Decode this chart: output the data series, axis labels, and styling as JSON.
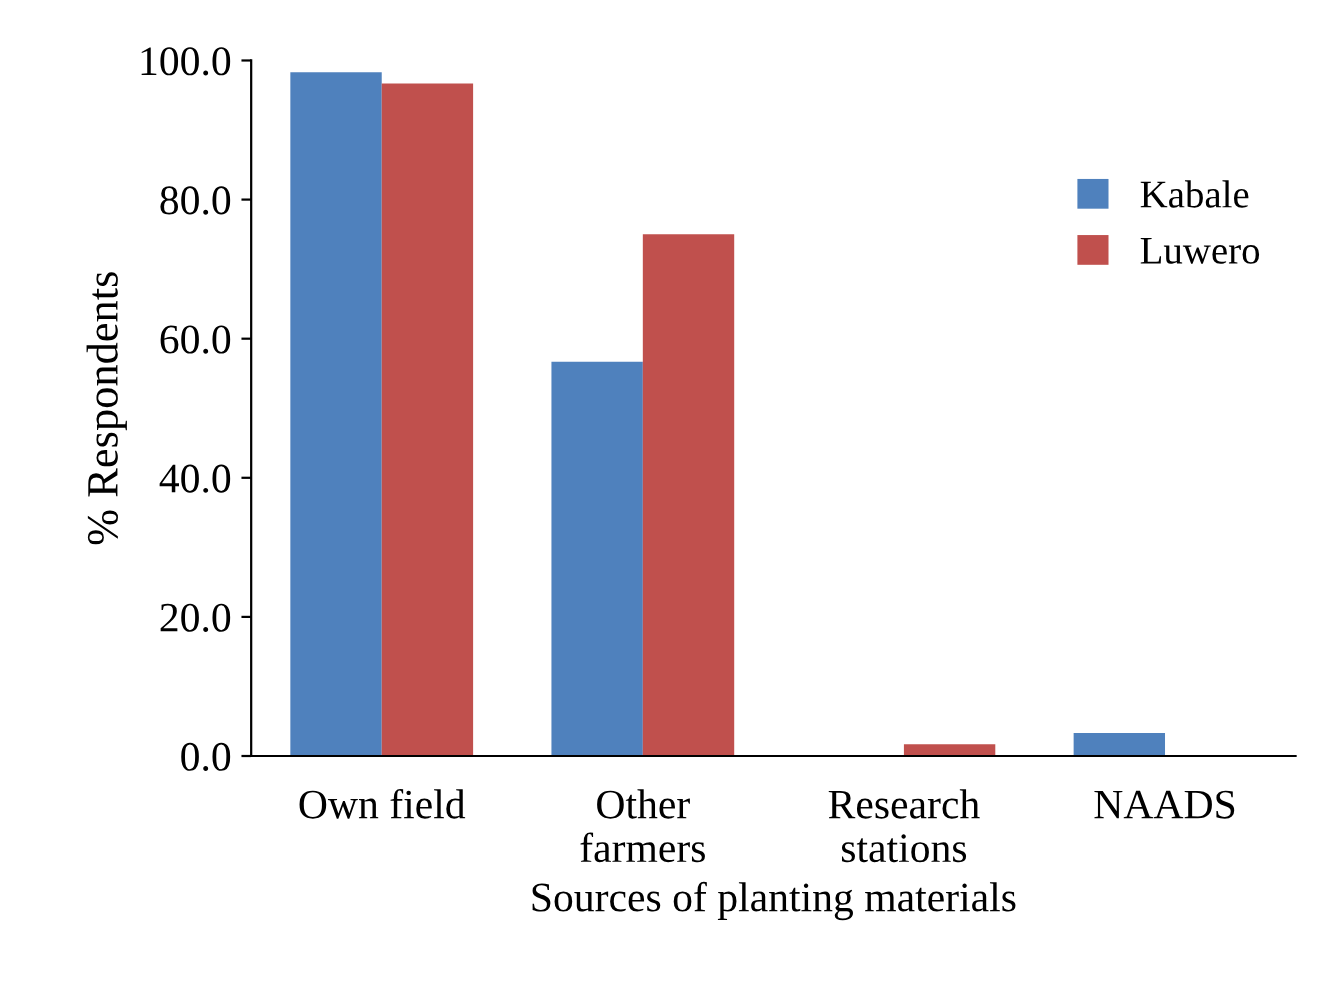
{
  "chart_data": {
    "type": "bar",
    "categories": [
      "Own field",
      "Other\nfarmers",
      "Research\nstations",
      "NAADS"
    ],
    "series": [
      {
        "name": "Kabale",
        "color": "#4f81bd",
        "values": [
          98.3,
          56.7,
          0,
          3.3
        ]
      },
      {
        "name": "Luwero",
        "color": "#c0504d",
        "values": [
          96.7,
          75.0,
          1.7,
          0
        ]
      }
    ],
    "xlabel": "Sources of planting materials",
    "ylabel": "% Respondents",
    "ylim": [
      0,
      100
    ],
    "yticks": [
      {
        "value": 0,
        "label": "0.0"
      },
      {
        "value": 20,
        "label": "20.0"
      },
      {
        "value": 40,
        "label": "40.0"
      },
      {
        "value": 60,
        "label": "60.0"
      },
      {
        "value": 80,
        "label": "80.0"
      },
      {
        "value": 100,
        "label": "100.0"
      }
    ],
    "grid": false,
    "legend": "right"
  }
}
